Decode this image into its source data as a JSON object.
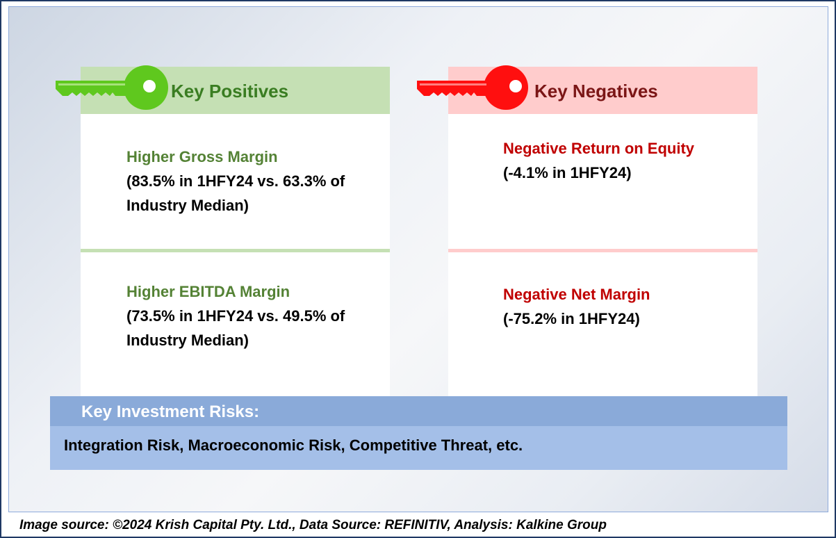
{
  "positives": {
    "title": "Key Positives",
    "items": [
      {
        "title": "Higher Gross Margin",
        "detail": "(83.5% in 1HFY24 vs. 63.3% of Industry Median)"
      },
      {
        "title": "Higher EBITDA Margin",
        "detail": "(73.5% in 1HFY24 vs. 49.5% of Industry Median)"
      }
    ]
  },
  "negatives": {
    "title": "Key Negatives",
    "items": [
      {
        "title": "Negative Return on Equity",
        "detail": "(-4.1% in 1HFY24)"
      },
      {
        "title": "Negative Net Margin",
        "detail": "(-75.2% in 1HFY24)"
      }
    ]
  },
  "risks": {
    "title": "Key Investment Risks:",
    "text": "Integration Risk, Macroeconomic Risk, Competitive Threat, etc."
  },
  "caption": "Image source: ©2024 Krish Capital Pty. Ltd., Data Source: REFINITIV, Analysis: Kalkine Group",
  "colors": {
    "positive_key": "#5fc81e",
    "negative_key": "#ff0f0f",
    "positive_header": "#c5e0b4",
    "negative_header": "#ffcccc",
    "risk_header": "#8aaad9",
    "risk_body": "#a4bfe8"
  },
  "icons": {
    "positive": "green-key-icon",
    "negative": "red-key-icon"
  }
}
